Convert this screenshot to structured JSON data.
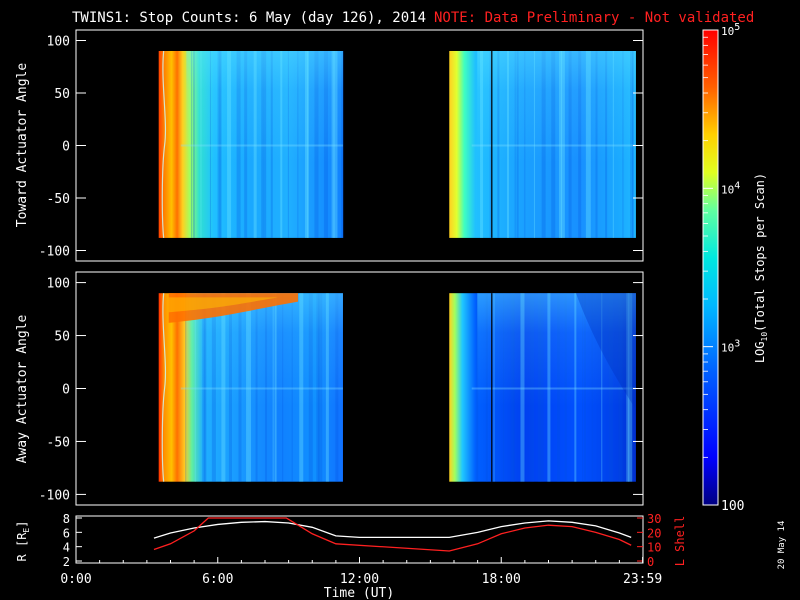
{
  "header": {
    "title": "TWINS1: Stop Counts:  6 May (day 126), 2014",
    "note": "NOTE: Data Preliminary - Not validated",
    "note_color": "#ff2020"
  },
  "colors": {
    "background": "#000000",
    "axis": "#ffffff",
    "orbit_r": "#ffffff",
    "orbit_lshell": "#ff2020"
  },
  "colorbar": {
    "label": "LOG10(Total Stops per Scan)",
    "label_base": "LOG",
    "label_sub": "10",
    "label_rest": "(Total Stops per Scan)",
    "ticks": [
      "10^5",
      "10^4",
      "10^3",
      "100"
    ],
    "tick_labels": [
      {
        "base": "10",
        "exp": "5",
        "value": 100000
      },
      {
        "base": "10",
        "exp": "4",
        "value": 10000
      },
      {
        "base": "10",
        "exp": "3",
        "value": 1000
      },
      {
        "base": "100",
        "exp": "",
        "value": 100
      }
    ],
    "range": [
      100,
      100000
    ],
    "scale": "log",
    "colormap": [
      "#000080",
      "#0000ff",
      "#0070ff",
      "#00c8ff",
      "#00ffc8",
      "#80ff80",
      "#ffff00",
      "#ff8000",
      "#ff0000",
      "#c00000"
    ]
  },
  "stamp": "20 May 14",
  "chart_data": [
    {
      "type": "heatmap",
      "panel": "toward",
      "ylabel": "Toward Actuator Angle",
      "ylim": [
        -110,
        110
      ],
      "yticks": [
        100,
        50,
        0,
        -50,
        -100
      ],
      "xlim_hours": [
        0,
        24
      ],
      "data_segments_hours": [
        [
          3.5,
          11.3
        ],
        [
          15.8,
          23.7
        ]
      ],
      "angle_range": [
        -88,
        90
      ],
      "vertical_marker_hour": 17.6,
      "description_levels": {
        "segment1_leading_edge": "high (red/orange) near 3.5-4.3 h",
        "segment2_leading_edge": "moderate (yellow) near 15.8-16.1 h",
        "bulk": "approximately 10^3 (cyan/light blue)"
      }
    },
    {
      "type": "heatmap",
      "panel": "away",
      "ylabel": "Away Actuator Angle",
      "ylim": [
        -110,
        110
      ],
      "yticks": [
        100,
        50,
        0,
        -50,
        -100
      ],
      "xlim_hours": [
        0,
        24
      ],
      "data_segments_hours": [
        [
          3.5,
          11.3
        ],
        [
          15.8,
          23.7
        ]
      ],
      "angle_range": [
        -88,
        90
      ],
      "vertical_marker_hour": 17.6
    },
    {
      "type": "line",
      "panel": "orbit",
      "ylabel": "R [RE]",
      "ylabel_base": "R [R",
      "ylabel_sub": "E",
      "ylabel_end": "]",
      "y2label": "L Shell",
      "xlabel": "Time (UT)",
      "ylim": [
        2,
        8
      ],
      "yticks": [
        2,
        4,
        6,
        8
      ],
      "y2lim": [
        0,
        30
      ],
      "y2ticks": [
        0,
        10,
        20,
        30
      ],
      "xticks": [
        "0:00",
        "6:00",
        "12:00",
        "18:00",
        "23:59"
      ],
      "xtick_hours": [
        0,
        6,
        12,
        18,
        23.983
      ],
      "series": [
        {
          "name": "R [RE]",
          "x": [
            3.3,
            4.0,
            5.0,
            6.0,
            7.0,
            8.0,
            9.0,
            10.0,
            11.0,
            12.0,
            13.0,
            14.0,
            15.0,
            15.8,
            17.0,
            18.0,
            19.0,
            20.0,
            21.0,
            22.0,
            23.0,
            23.5
          ],
          "values": [
            5.2,
            5.9,
            6.6,
            7.1,
            7.4,
            7.5,
            7.3,
            6.7,
            5.5,
            5.3,
            5.3,
            5.3,
            5.3,
            5.3,
            6.0,
            6.8,
            7.3,
            7.6,
            7.4,
            6.9,
            5.9,
            5.3
          ]
        },
        {
          "name": "L Shell",
          "x": [
            3.3,
            4.0,
            5.0,
            5.6,
            8.9,
            9.3,
            10.0,
            11.0,
            15.8,
            17.0,
            18.0,
            19.0,
            20.0,
            21.0,
            22.0,
            23.0,
            23.5
          ],
          "values": [
            8,
            12,
            21,
            30,
            30,
            26,
            19,
            12,
            7,
            12,
            19,
            23,
            25,
            24,
            20,
            15,
            11
          ]
        }
      ]
    }
  ]
}
